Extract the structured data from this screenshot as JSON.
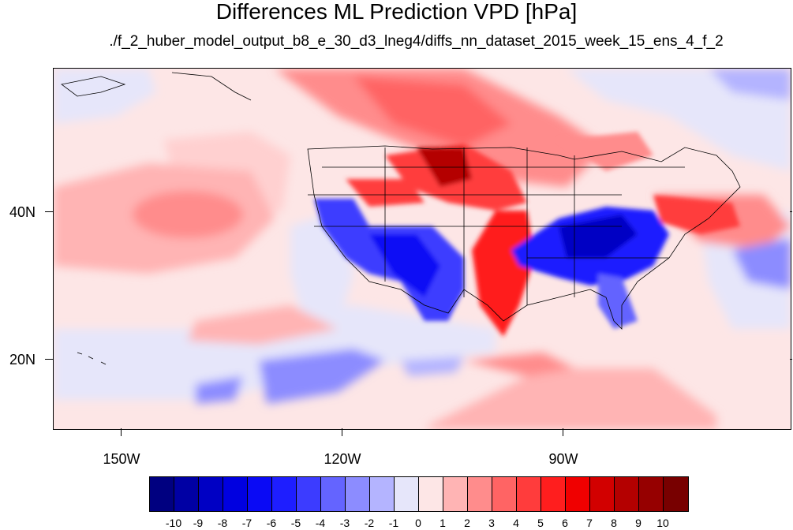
{
  "title": "Differences ML Prediction VPD [hPa]",
  "subtitle": "./f_2_huber_model_output_b8_e_30_d3_lneg4/diffs_nn_dataset_2015_week_15_ens_4_f_2",
  "axes": {
    "lat_labels": [
      "40N",
      "20N"
    ],
    "lon_labels": [
      "150W",
      "120W",
      "90W"
    ]
  },
  "colorbar": {
    "labels": [
      "-10",
      "-9",
      "-8",
      "-7",
      "-6",
      "-5",
      "-4",
      "-3",
      "-2",
      "-1",
      "0",
      "1",
      "2",
      "3",
      "4",
      "5",
      "6",
      "7",
      "8",
      "9",
      "10"
    ],
    "colors": [
      "#000080",
      "#0000a4",
      "#0000c4",
      "#0000e0",
      "#0a0af5",
      "#1e1eff",
      "#3c3cff",
      "#6464ff",
      "#8c8cff",
      "#b4b4ff",
      "#e6e6fa",
      "#fde6e6",
      "#ffb4b4",
      "#ff8c8c",
      "#ff6464",
      "#ff3c3c",
      "#ff1e1e",
      "#f00000",
      "#d20000",
      "#b40000",
      "#960000",
      "#780000"
    ]
  },
  "map": {
    "background_color": "#fce8e8",
    "coastline_color": "#000000"
  }
}
